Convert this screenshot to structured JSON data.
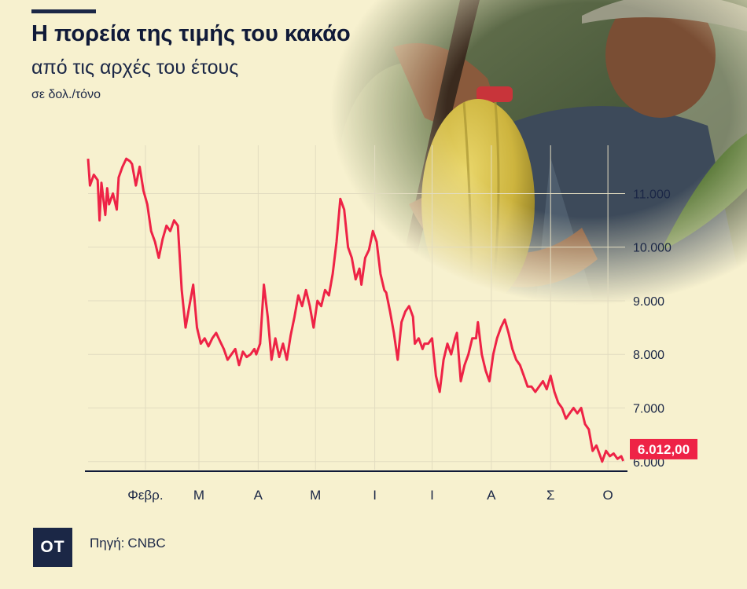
{
  "header": {
    "title": "Η πορεία της τιμής του κακάο",
    "subtitle": "από τις αρχές του έτους",
    "unit": "σε δολ./τόνο"
  },
  "footer": {
    "logo_text": "OT",
    "source_label": "Πηγή:",
    "source_value": "CNBC"
  },
  "photo": {
    "icon": "cocoa-pod-photo"
  },
  "colors": {
    "line": "#ee2346",
    "badge": "#ee2346",
    "text": "#1b2746",
    "background": "#f7f1cf",
    "grid": "#e2dcc0"
  },
  "chart_data": {
    "type": "line",
    "title": "Η πορεία της τιμής του κακάο",
    "subtitle": "από τις αρχές του έτους",
    "ylabel": "σε δολ./τόνο",
    "xlabel": "",
    "ylim": [
      5850,
      11900
    ],
    "y_ticks": [
      6000,
      7000,
      8000,
      9000,
      10000,
      11000
    ],
    "y_tick_labels": [
      "6.000",
      "7.000",
      "8.000",
      "9.000",
      "10.000",
      "11.000"
    ],
    "y_axis_position": "right",
    "month_ticks": [
      {
        "label": "Φεβρ.",
        "day": 31
      },
      {
        "label": "Μ",
        "day": 59
      },
      {
        "label": "Α",
        "day": 90
      },
      {
        "label": "Μ",
        "day": 120
      },
      {
        "label": "Ι",
        "day": 151
      },
      {
        "label": "Ι",
        "day": 181
      },
      {
        "label": "Α",
        "day": 212
      },
      {
        "label": "Σ",
        "day": 243
      },
      {
        "label": "Ο",
        "day": 273
      }
    ],
    "x_domain": [
      1,
      282
    ],
    "last_value_label": "6.012,00",
    "grid": true,
    "series": [
      {
        "values": [
          [
            1,
            11650
          ],
          [
            2,
            11150
          ],
          [
            4,
            11350
          ],
          [
            6,
            11250
          ],
          [
            7,
            10500
          ],
          [
            8,
            11200
          ],
          [
            10,
            10600
          ],
          [
            11,
            11100
          ],
          [
            12,
            10800
          ],
          [
            14,
            11000
          ],
          [
            16,
            10700
          ],
          [
            17,
            11300
          ],
          [
            19,
            11500
          ],
          [
            21,
            11650
          ],
          [
            23,
            11600
          ],
          [
            24,
            11550
          ],
          [
            26,
            11150
          ],
          [
            28,
            11500
          ],
          [
            30,
            11050
          ],
          [
            32,
            10800
          ],
          [
            34,
            10300
          ],
          [
            36,
            10100
          ],
          [
            38,
            9800
          ],
          [
            40,
            10150
          ],
          [
            42,
            10400
          ],
          [
            44,
            10300
          ],
          [
            46,
            10500
          ],
          [
            48,
            10400
          ],
          [
            50,
            9200
          ],
          [
            52,
            8500
          ],
          [
            54,
            8900
          ],
          [
            56,
            9300
          ],
          [
            58,
            8500
          ],
          [
            60,
            8200
          ],
          [
            62,
            8300
          ],
          [
            64,
            8150
          ],
          [
            66,
            8300
          ],
          [
            68,
            8400
          ],
          [
            70,
            8250
          ],
          [
            72,
            8100
          ],
          [
            74,
            7900
          ],
          [
            76,
            8000
          ],
          [
            78,
            8100
          ],
          [
            80,
            7800
          ],
          [
            82,
            8050
          ],
          [
            84,
            7950
          ],
          [
            86,
            8000
          ],
          [
            88,
            8100
          ],
          [
            89,
            8000
          ],
          [
            91,
            8200
          ],
          [
            93,
            9300
          ],
          [
            95,
            8700
          ],
          [
            97,
            7900
          ],
          [
            99,
            8300
          ],
          [
            101,
            7950
          ],
          [
            103,
            8200
          ],
          [
            105,
            7900
          ],
          [
            107,
            8350
          ],
          [
            109,
            8700
          ],
          [
            111,
            9100
          ],
          [
            113,
            8900
          ],
          [
            115,
            9200
          ],
          [
            117,
            8900
          ],
          [
            119,
            8500
          ],
          [
            121,
            9000
          ],
          [
            123,
            8900
          ],
          [
            125,
            9200
          ],
          [
            127,
            9100
          ],
          [
            129,
            9500
          ],
          [
            131,
            10100
          ],
          [
            133,
            10900
          ],
          [
            135,
            10700
          ],
          [
            137,
            10000
          ],
          [
            139,
            9800
          ],
          [
            141,
            9400
          ],
          [
            143,
            9600
          ],
          [
            144,
            9300
          ],
          [
            146,
            9800
          ],
          [
            148,
            9950
          ],
          [
            150,
            10300
          ],
          [
            152,
            10100
          ],
          [
            154,
            9500
          ],
          [
            156,
            9200
          ],
          [
            157,
            9150
          ],
          [
            159,
            8800
          ],
          [
            161,
            8400
          ],
          [
            163,
            7900
          ],
          [
            165,
            8600
          ],
          [
            167,
            8800
          ],
          [
            169,
            8900
          ],
          [
            171,
            8700
          ],
          [
            172,
            8200
          ],
          [
            174,
            8300
          ],
          [
            176,
            8100
          ],
          [
            177,
            8200
          ],
          [
            179,
            8200
          ],
          [
            181,
            8300
          ],
          [
            183,
            7600
          ],
          [
            185,
            7300
          ],
          [
            187,
            7900
          ],
          [
            189,
            8200
          ],
          [
            191,
            8000
          ],
          [
            193,
            8300
          ],
          [
            194,
            8400
          ],
          [
            196,
            7500
          ],
          [
            198,
            7800
          ],
          [
            200,
            8000
          ],
          [
            202,
            8300
          ],
          [
            204,
            8300
          ],
          [
            205,
            8600
          ],
          [
            207,
            8000
          ],
          [
            209,
            7700
          ],
          [
            211,
            7500
          ],
          [
            213,
            8000
          ],
          [
            215,
            8300
          ],
          [
            217,
            8500
          ],
          [
            219,
            8650
          ],
          [
            221,
            8400
          ],
          [
            223,
            8100
          ],
          [
            225,
            7900
          ],
          [
            227,
            7800
          ],
          [
            229,
            7600
          ],
          [
            231,
            7400
          ],
          [
            233,
            7400
          ],
          [
            235,
            7300
          ],
          [
            237,
            7400
          ],
          [
            239,
            7500
          ],
          [
            241,
            7350
          ],
          [
            243,
            7600
          ],
          [
            245,
            7300
          ],
          [
            247,
            7100
          ],
          [
            249,
            7000
          ],
          [
            251,
            6800
          ],
          [
            253,
            6900
          ],
          [
            255,
            7000
          ],
          [
            257,
            6900
          ],
          [
            259,
            7000
          ],
          [
            261,
            6700
          ],
          [
            263,
            6600
          ],
          [
            265,
            6200
          ],
          [
            267,
            6300
          ],
          [
            269,
            6100
          ],
          [
            270,
            6000
          ],
          [
            272,
            6200
          ],
          [
            274,
            6100
          ],
          [
            276,
            6150
          ],
          [
            278,
            6050
          ],
          [
            280,
            6100
          ],
          [
            281,
            6012
          ]
        ]
      }
    ]
  }
}
